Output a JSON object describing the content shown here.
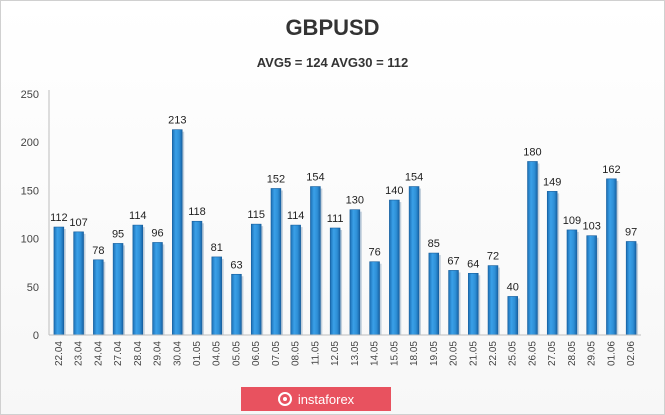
{
  "chart_data": {
    "type": "bar",
    "title": "GBPUSD",
    "subtitle": "AVG5 = 124 AVG30 = 112",
    "ylim": [
      0,
      250
    ],
    "yticks": [
      0,
      50,
      100,
      150,
      200,
      250
    ],
    "grid": false,
    "categories": [
      "22.04",
      "23.04",
      "24.04",
      "27.04",
      "28.04",
      "29.04",
      "30.04",
      "01.05",
      "04.05",
      "05.05",
      "06.05",
      "07.05",
      "08.05",
      "11.05",
      "12.05",
      "13.05",
      "14.05",
      "15.05",
      "18.05",
      "19.05",
      "20.05",
      "21.05",
      "22.05",
      "25.05",
      "26.05",
      "27.05",
      "28.05",
      "29.05",
      "01.06",
      "02.06"
    ],
    "values": [
      112,
      107,
      78,
      95,
      114,
      96,
      213,
      118,
      81,
      63,
      115,
      152,
      114,
      154,
      111,
      130,
      76,
      140,
      154,
      85,
      67,
      64,
      72,
      40,
      180,
      149,
      109,
      103,
      162,
      97
    ],
    "bar_color": "#2e8fd6"
  },
  "watermark": {
    "text": "instaforex"
  }
}
